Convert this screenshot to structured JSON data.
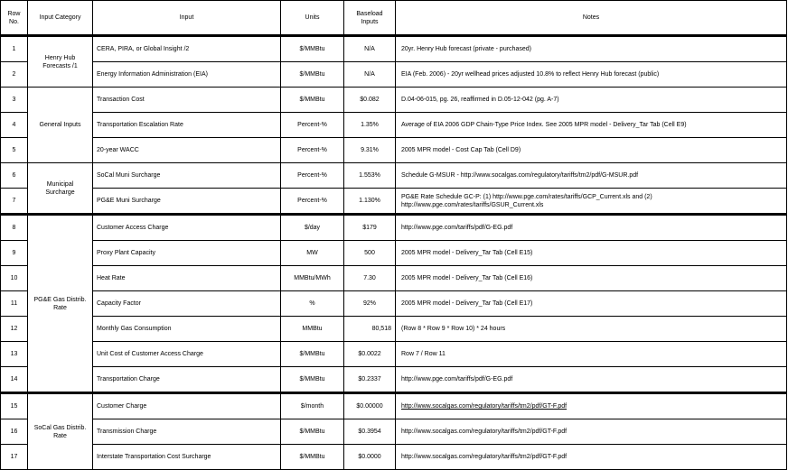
{
  "headers": {
    "row_no": "Row No.",
    "category": "Input Category",
    "input": "Input",
    "units": "Units",
    "baseload": "Baseload Inputs",
    "notes": "Notes"
  },
  "categories": [
    {
      "label": "Henry Hub Forecasts /1",
      "rows": 2
    },
    {
      "label": "General Inputs",
      "rows": 3
    },
    {
      "label": "Municipal Surcharge",
      "rows": 2
    },
    {
      "label": "PG&E Gas Distrib. Rate",
      "rows": 7
    },
    {
      "label": "SoCal Gas Distrib. Rate",
      "rows": 3
    }
  ],
  "rows": [
    {
      "no": "1",
      "input": "CERA, PIRA, or Global Insight /2",
      "units": "$/MMBtu",
      "value": "N/A",
      "notes": "20yr. Henry Hub forecast (private - purchased)"
    },
    {
      "no": "2",
      "input": "Energy Information Administration (EIA)",
      "units": "$/MMBtu",
      "value": "N/A",
      "notes": "EIA (Feb. 2006) - 20yr wellhead prices adjusted 10.8% to reflect Henry Hub forecast (public)"
    },
    {
      "no": "3",
      "input": "Transaction Cost",
      "units": "$/MMBtu",
      "value": "$0.082",
      "notes": "D.04-06-015, pg. 26, reaffirmed in D.05-12-042 (pg. A-7)"
    },
    {
      "no": "4",
      "input": "Transportation Escalation Rate",
      "units": "Percent-%",
      "value": "1.35%",
      "notes": "Average of EIA 2006 GDP Chain-Type Price Index. See 2005 MPR model - Delivery_Tar Tab (Cell E9)"
    },
    {
      "no": "5",
      "input": "20-year WACC",
      "units": "Percent-%",
      "value": "9.31%",
      "notes": "2005 MPR model - Cost Cap Tab (Cell D9)"
    },
    {
      "no": "6",
      "input": "SoCal Muni Surcharge",
      "units": "Percent-%",
      "value": "1.553%",
      "notes": "Schedule G-MSUR - http://www.socalgas.com/regulatory/tariffs/tm2/pdf/G-MSUR.pdf"
    },
    {
      "no": "7",
      "input": "PG&E Muni Surcharge",
      "units": "Percent-%",
      "value": "1.130%",
      "notes": "PG&E Rate Schedule GC-P: (1) http://www.pge.com/rates/tariffs/GCP_Current.xls and (2) http://www.pge.com/rates/tariffs/GSUR_Current.xls"
    },
    {
      "no": "8",
      "input": "Customer Access Charge",
      "units": "$/day",
      "value": "$179",
      "notes": "http://www.pge.com/tariffs/pdf/G-EG.pdf"
    },
    {
      "no": "9",
      "input": "Proxy Plant Capacity",
      "units": "MW",
      "value": "500",
      "notes": "2005 MPR model - Delivery_Tar Tab (Cell E15)"
    },
    {
      "no": "10",
      "input": "Heat Rate",
      "units": "MMBtu/MWh",
      "value": "7.30",
      "notes": "2005 MPR model - Delivery_Tar Tab (Cell E16)"
    },
    {
      "no": "11",
      "input": "Capacity Factor",
      "units": "%",
      "value": "92%",
      "notes": "2005 MPR model - Delivery_Tar Tab (Cell E17)"
    },
    {
      "no": "12",
      "input": "Monthly Gas Consumption",
      "units": "MMBtu",
      "value": "80,518",
      "notes": "(Row 8 * Row 9 * Row 10) * 24 hours"
    },
    {
      "no": "13",
      "input": "Unit Cost of Customer Access Charge",
      "units": "$/MMBtu",
      "value": "$0.0022",
      "notes": "Row 7 / Row 11"
    },
    {
      "no": "14",
      "input": "Transportation Charge",
      "units": "$/MMBtu",
      "value": "$0.2337",
      "notes": "http://www.pge.com/tariffs/pdf/G-EG.pdf"
    },
    {
      "no": "15",
      "input": "Customer Charge",
      "units": "$/month",
      "value": "$0.00000",
      "notes": "http://www.socalgas.com/regulatory/tariffs/tm2/pdf/GT-F.pdf"
    },
    {
      "no": "16",
      "input": "Transmission Charge",
      "units": "$/MMBtu",
      "value": "$0.3954",
      "notes": "http://www.socalgas.com/regulatory/tariffs/tm2/pdf/GT-F.pdf"
    },
    {
      "no": "17",
      "input": "Interstate Transportation Cost Surcharge",
      "units": "$/MMBtu",
      "value": "$0.0000",
      "notes": "http://www.socalgas.com/regulatory/tariffs/tm2/pdf/GT-F.pdf"
    }
  ]
}
